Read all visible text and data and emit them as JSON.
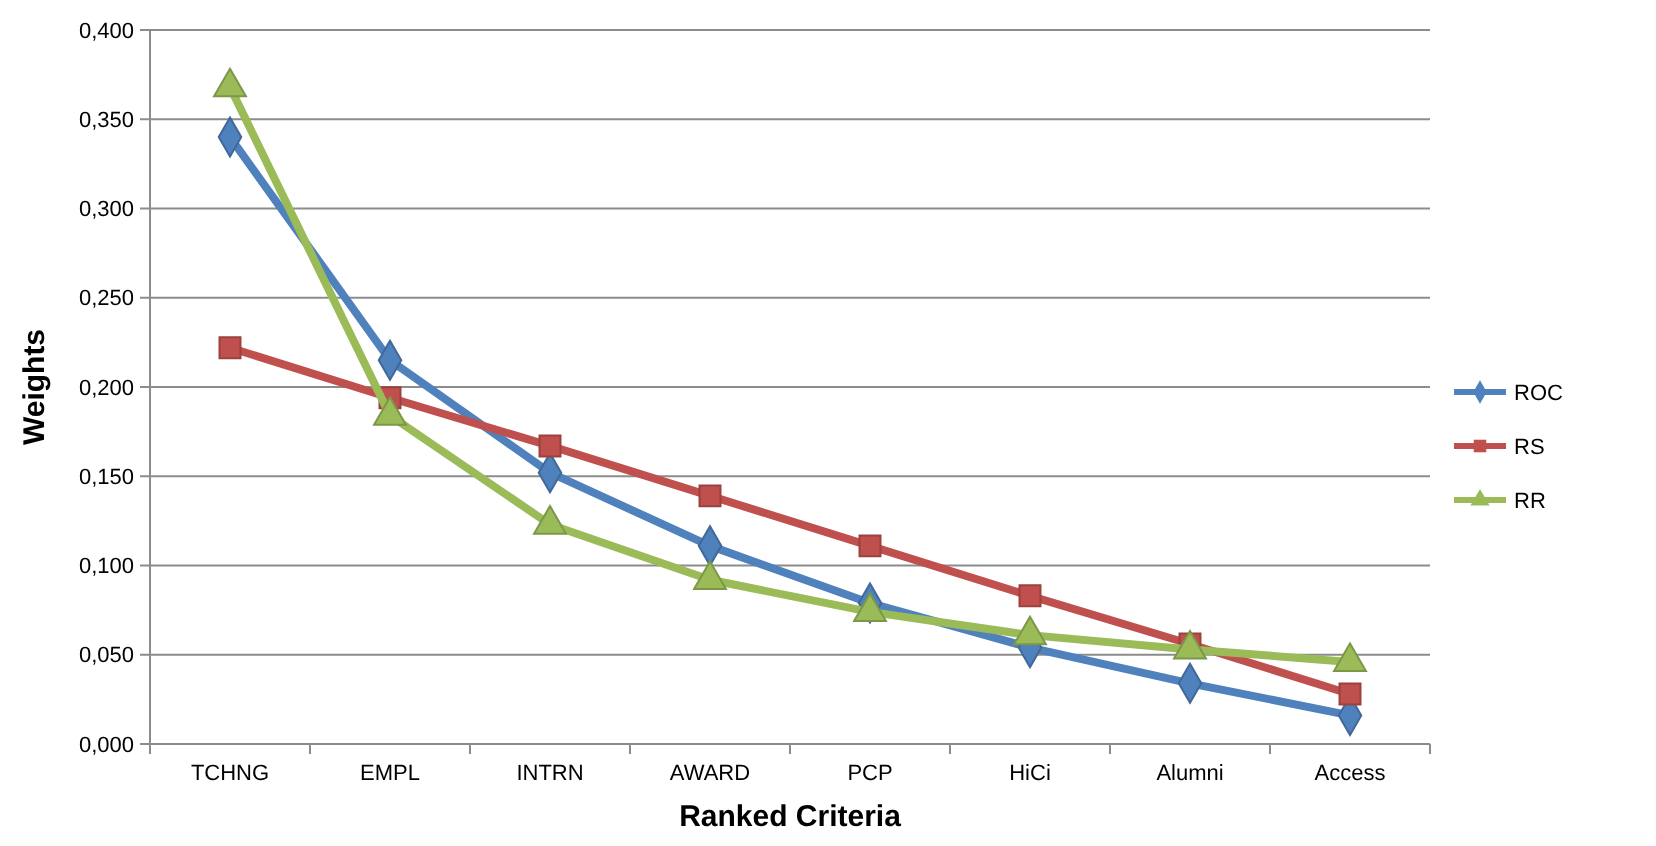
{
  "chart_data": {
    "type": "line",
    "xlabel": "Ranked Criteria",
    "ylabel": "Weights",
    "categories": [
      "TCHNG",
      "EMPL",
      "INTRN",
      "AWARD",
      "PCP",
      "HiCi",
      "Alumni",
      "Access"
    ],
    "series": [
      {
        "name": "ROC",
        "color": "#4f81bd",
        "marker": "diamond",
        "values": [
          0.34,
          0.215,
          0.152,
          0.111,
          0.079,
          0.054,
          0.034,
          0.016
        ]
      },
      {
        "name": "RS",
        "color": "#c0504d",
        "marker": "square",
        "values": [
          0.222,
          0.194,
          0.167,
          0.139,
          0.111,
          0.083,
          0.056,
          0.028
        ]
      },
      {
        "name": "RR",
        "color": "#9bbb59",
        "marker": "triangle",
        "values": [
          0.368,
          0.184,
          0.123,
          0.092,
          0.074,
          0.061,
          0.053,
          0.046
        ]
      }
    ],
    "ylim": [
      0,
      0.4
    ],
    "yticks": [
      {
        "value": 0,
        "label": "0,000"
      },
      {
        "value": 0.05,
        "label": "0,050"
      },
      {
        "value": 0.1,
        "label": "0,100"
      },
      {
        "value": 0.15,
        "label": "0,150"
      },
      {
        "value": 0.2,
        "label": "0,200"
      },
      {
        "value": 0.25,
        "label": "0,250"
      },
      {
        "value": 0.3,
        "label": "0,300"
      },
      {
        "value": 0.35,
        "label": "0,350"
      },
      {
        "value": 0.4,
        "label": "0,400"
      }
    ],
    "grid": "y",
    "legend": "right",
    "line_style": "solid"
  }
}
